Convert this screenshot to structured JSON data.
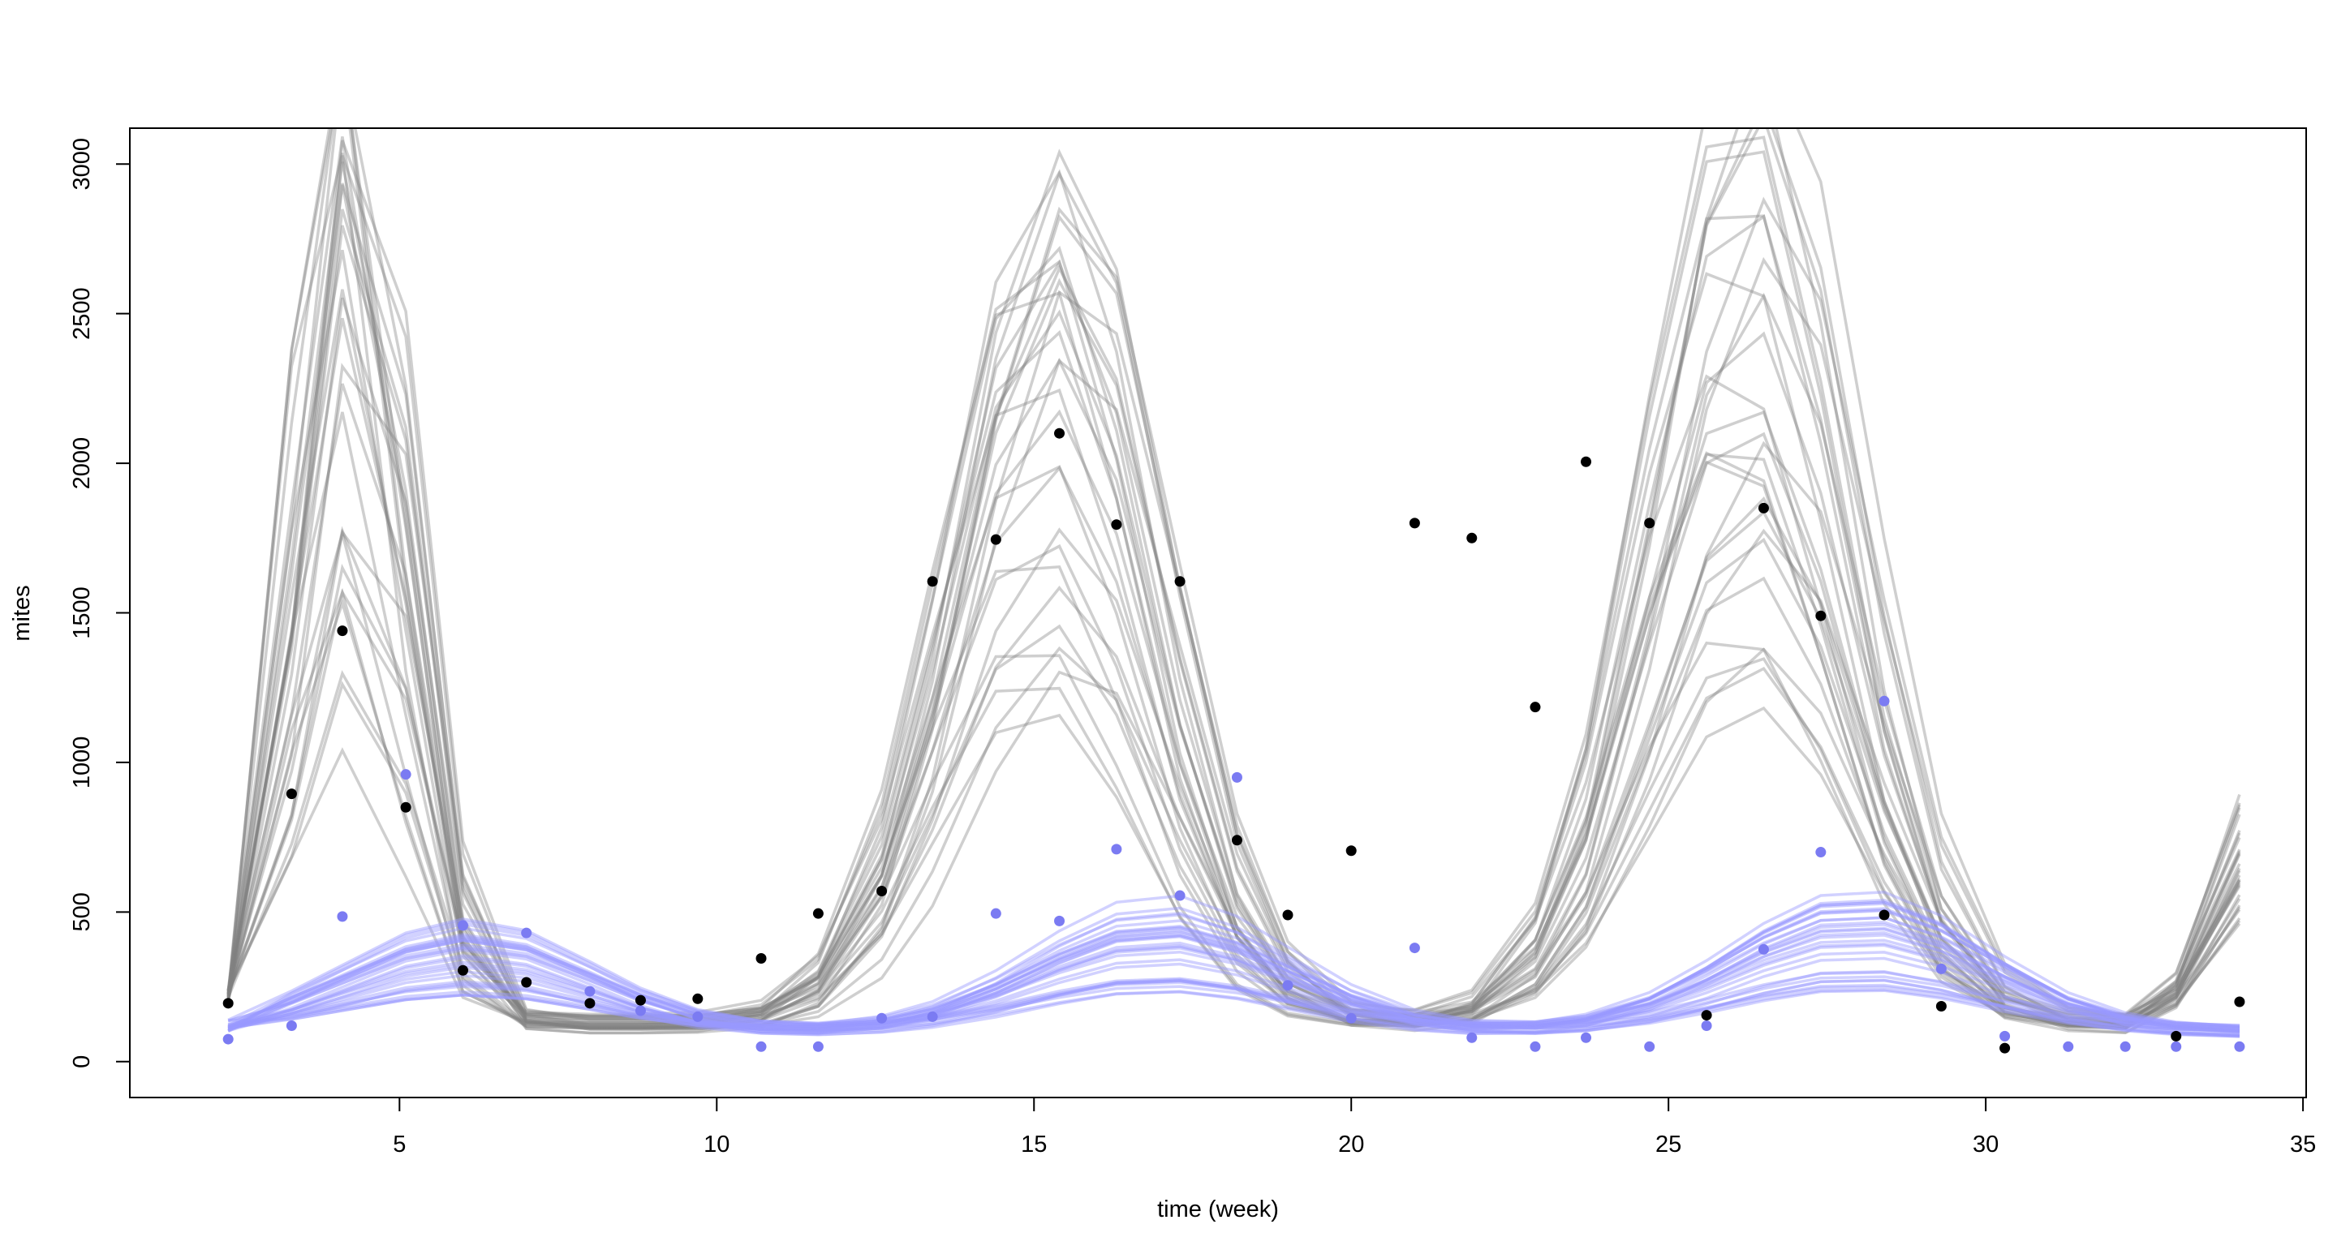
{
  "chart_data": {
    "type": "line",
    "title": "",
    "xlabel": "time (week)",
    "ylabel": "mites",
    "xlim": [
      0.75,
      35.05
    ],
    "ylim": [
      -120,
      3120
    ],
    "x_ticks": [
      5,
      10,
      15,
      20,
      25,
      30,
      35
    ],
    "y_ticks": [
      0,
      500,
      1000,
      1500,
      2000,
      2500,
      3000
    ],
    "x": [
      2.3,
      3.3,
      4.1,
      5.1,
      6.0,
      7.0,
      8.0,
      8.8,
      9.7,
      10.7,
      11.6,
      12.6,
      13.4,
      14.4,
      15.4,
      16.3,
      17.3,
      18.2,
      19.0,
      20.0,
      21.0,
      21.9,
      22.9,
      23.7,
      24.7,
      25.6,
      26.5,
      27.4,
      28.4,
      29.3,
      30.3,
      31.3,
      32.2,
      33.0,
      34.0
    ],
    "observed_black": [
      195,
      895,
      1440,
      850,
      305,
      265,
      195,
      205,
      210,
      345,
      495,
      570,
      1605,
      1745,
      2100,
      1795,
      1605,
      740,
      490,
      705,
      1800,
      1750,
      1185,
      2005,
      1800,
      155,
      1850,
      1490,
      490,
      185,
      45,
      null,
      null,
      85,
      200
    ],
    "observed_blue": [
      75,
      120,
      485,
      960,
      455,
      430,
      235,
      170,
      150,
      50,
      50,
      145,
      150,
      495,
      470,
      710,
      555,
      950,
      255,
      145,
      380,
      80,
      50,
      80,
      50,
      120,
      375,
      700,
      1205,
      310,
      85,
      50,
      50,
      50,
      50
    ],
    "grey_trajectory_count": 30,
    "blue_trajectory_count": 30,
    "colors": {
      "observed_black": "#000000",
      "observed_blue": "#7b7bf2",
      "trajectory_grey": "#808080",
      "trajectory_blue": "#9a9aff"
    }
  }
}
